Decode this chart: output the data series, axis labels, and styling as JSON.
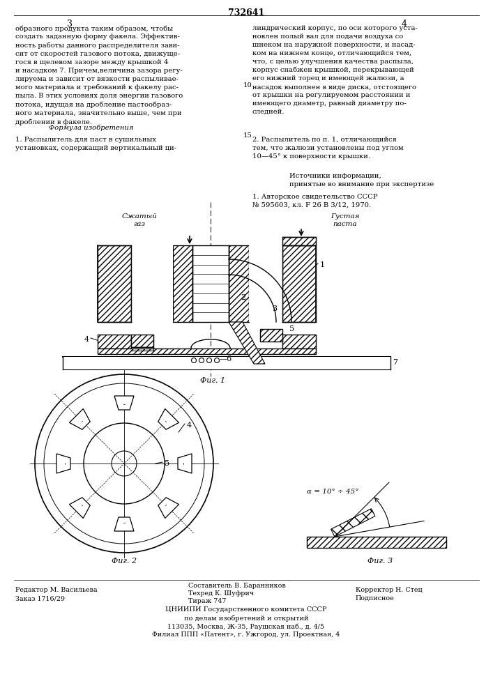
{
  "page_number": "732641",
  "col_left": "3",
  "col_right": "4",
  "bg_color": "#ffffff",
  "text_color": "#000000",
  "footer_editor": "Редактор М. Васильева",
  "footer_order": "Заказ 1716/29",
  "footer_composer": "Составитель В. Баранников",
  "footer_tech": "Техред К. Шуфрич",
  "footer_circulation": "Тираж 747",
  "footer_corrector": "Корректор Н. Стец",
  "footer_subscribe": "Подписное",
  "footer_org": "ЦНИИПИ Государственного комитета СССР",
  "footer_org2": "по делам изобретений и открытий",
  "footer_addr1": "113035, Москва, Ж-35, Раушская наб., д. 4/5",
  "footer_addr2": "Филиал ППП «Патент», г. Ужгород, ул. Проектная, 4"
}
